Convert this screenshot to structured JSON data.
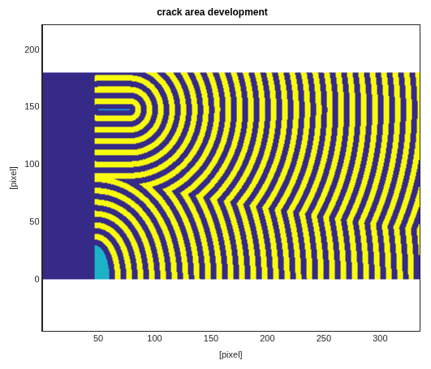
{
  "chart_data": {
    "type": "image",
    "title": "crack area development",
    "x_label": "[pixel]",
    "y_label": "[pixel]",
    "xlim": [
      0,
      335
    ],
    "ylim": [
      -45,
      222
    ],
    "xticks": [
      50,
      100,
      150,
      200,
      250,
      300
    ],
    "yticks": [
      0,
      50,
      100,
      150,
      200
    ],
    "grid": false,
    "masked_region": {
      "x": [
        0,
        47
      ],
      "y": [
        0,
        180
      ],
      "color": "#352a87"
    },
    "band_field": {
      "x": [
        47,
        335
      ],
      "y": [
        0,
        180
      ],
      "band_width": 5,
      "colors": [
        "#352a87",
        "#f9fb0e"
      ]
    },
    "crack": {
      "x": [
        50,
        78
      ],
      "y": [
        148,
        148
      ],
      "color": "#1b86d8"
    },
    "crack_area": {
      "center": [
        47,
        0
      ],
      "x_radius": 13,
      "y_radius": 30,
      "color": "#1bb2c8"
    }
  }
}
